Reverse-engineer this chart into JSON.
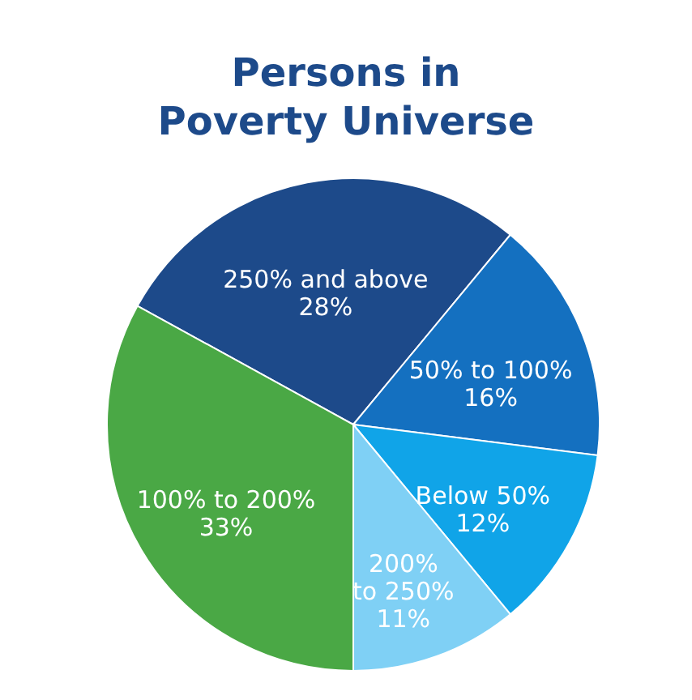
{
  "chart_data": {
    "type": "pie",
    "title": [
      "Persons in",
      "Poverty Universe"
    ],
    "categories": [
      "250% and above",
      "50% to 100%",
      "Below 50%",
      "200%\nto 250%",
      "100% to 200%"
    ],
    "values": [
      28,
      16,
      12,
      11,
      33
    ],
    "value_labels": [
      "28%",
      "16%",
      "12%",
      "11%",
      "33%"
    ],
    "colors": [
      "#1d4a8a",
      "#1470c0",
      "#10a4e8",
      "#7fd0f5",
      "#4aa845"
    ],
    "legend": false
  }
}
